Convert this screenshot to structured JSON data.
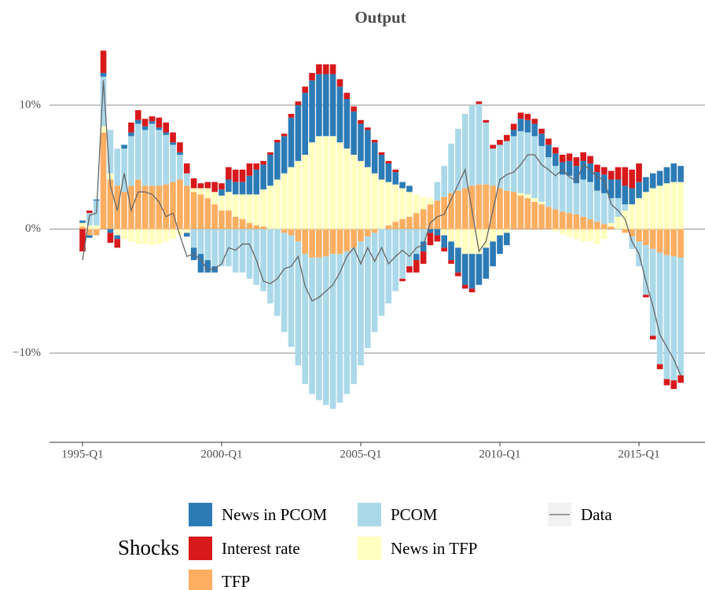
{
  "chart_data": {
    "type": "bar",
    "stacked": true,
    "title": "Output",
    "categories": [
      "1995-Q1",
      null,
      null,
      null,
      null,
      null,
      null,
      null,
      null,
      null,
      null,
      null,
      null,
      null,
      null,
      null,
      null,
      null,
      null,
      null,
      "2000-Q1",
      null,
      null,
      null,
      null,
      null,
      null,
      null,
      null,
      null,
      null,
      null,
      null,
      null,
      null,
      null,
      null,
      null,
      null,
      null,
      "2005-Q1",
      null,
      null,
      null,
      null,
      null,
      null,
      null,
      null,
      null,
      null,
      null,
      null,
      null,
      null,
      null,
      null,
      null,
      null,
      null,
      "2010-Q1",
      null,
      null,
      null,
      null,
      null,
      null,
      null,
      null,
      null,
      null,
      null,
      null,
      null,
      null,
      null,
      null,
      null,
      null,
      null,
      "2015-Q1",
      null,
      null,
      null,
      null,
      null,
      null
    ],
    "ylim": [
      -17.2,
      15
    ],
    "yticks": [
      {
        "value": -10,
        "label": "−10%"
      },
      {
        "value": 0,
        "label": "0%"
      },
      {
        "value": 10,
        "label": "10%"
      }
    ],
    "grid": true,
    "legend_title": "Shocks",
    "series": [
      {
        "name": "News in PCOM",
        "color": "#2c7bb6",
        "values": [
          0.2,
          -0.2,
          0.1,
          0.3,
          -0.3,
          -0.3,
          0.3,
          0.3,
          0.3,
          0.3,
          0.2,
          0.2,
          0.2,
          0.2,
          0.2,
          -0.3,
          -1,
          -1.5,
          -1,
          -0.5,
          0.5,
          1,
          1,
          1,
          1.5,
          2,
          2,
          2.5,
          3,
          3,
          4,
          4.5,
          5,
          5,
          5,
          5,
          5,
          4.5,
          4,
          3.5,
          3,
          3,
          2.5,
          2,
          1.5,
          1,
          0.5,
          0.5,
          -0.5,
          -0.8,
          -0.3,
          -0.5,
          -1,
          -1.5,
          -2,
          -2.5,
          -2.8,
          -2.5,
          -2.5,
          -2,
          -1.5,
          -1,
          0.5,
          1,
          1,
          1,
          1,
          1,
          1,
          1,
          1.2,
          1.4,
          1.5,
          1.5,
          1.5,
          1.5,
          1.5,
          1.5,
          1.5,
          1.3,
          1.3,
          1.2,
          1.2,
          1.2,
          1.3,
          1.5,
          1.3
        ]
      },
      {
        "name": "Interest rate",
        "color": "#d7191c",
        "values": [
          -1.8,
          0.2,
          0,
          1.8,
          -0.8,
          -0.7,
          0,
          0.8,
          0.8,
          0.6,
          0.4,
          0.8,
          0.8,
          0.8,
          0.8,
          0.8,
          0.8,
          0.4,
          0.5,
          0.8,
          0.5,
          1,
          1,
          1,
          1,
          0.5,
          0.3,
          0.2,
          0.2,
          0.2,
          0.3,
          0.3,
          0.5,
          0.6,
          0.8,
          0.8,
          0.8,
          0.6,
          0.5,
          0.4,
          0.3,
          0.2,
          0.2,
          0.2,
          0.2,
          0.2,
          -0.2,
          -0.5,
          -1,
          -1,
          -1,
          -0.5,
          -0.3,
          -0.3,
          -0.3,
          -0.3,
          -0.3,
          0.2,
          0.2,
          0.3,
          0.4,
          0.5,
          0.5,
          0.5,
          0.5,
          0.4,
          0.4,
          0.5,
          0.5,
          0.6,
          0.6,
          0.7,
          0.7,
          0.6,
          0.6,
          0.6,
          0.7,
          1,
          1.5,
          1.5,
          1.5,
          -0.2,
          -0.3,
          -0.4,
          -0.5,
          -0.7,
          -0.6
        ]
      },
      {
        "name": "TFP",
        "color": "#fdae61",
        "values": [
          0.2,
          -0.5,
          -0.5,
          7.8,
          4,
          3.5,
          3,
          3.5,
          4,
          3.5,
          3.5,
          3.5,
          3.6,
          3.8,
          4,
          3.5,
          3,
          2.8,
          2.5,
          2,
          1.5,
          1.5,
          1,
          0.8,
          0.5,
          0.3,
          0.2,
          0,
          0,
          -0.3,
          -0.5,
          -1,
          -2,
          -2.3,
          -2.3,
          -2.2,
          -2,
          -2,
          -1.8,
          -1.5,
          -1,
          -0.6,
          -0.3,
          0,
          0.3,
          0.6,
          0.8,
          1,
          1.3,
          1.6,
          2,
          2.3,
          2.6,
          2.9,
          3.1,
          3.3,
          3.5,
          3.6,
          3.6,
          3.5,
          3.3,
          3.1,
          3,
          2.7,
          2.5,
          2.2,
          2,
          1.8,
          1.6,
          1.4,
          1.3,
          1.2,
          1,
          0.8,
          0.6,
          0.4,
          0.2,
          0,
          -0.3,
          -0.6,
          -1,
          -1.3,
          -1.6,
          -1.9,
          -2.1,
          -2.2,
          -2.3
        ]
      },
      {
        "name": "PCOM",
        "color": "#abd9e9",
        "values": [
          0,
          1,
          2,
          4,
          3.5,
          3,
          3.5,
          4,
          4.5,
          4.5,
          5,
          4.5,
          4,
          3,
          2,
          1,
          -1.5,
          -2,
          -2.5,
          -3,
          -3,
          -3,
          -3.5,
          -3.5,
          -4,
          -4.5,
          -5,
          -6,
          -7,
          -8,
          -9,
          -10,
          -10.5,
          -11,
          -11.5,
          -12,
          -12.5,
          -12,
          -11.5,
          -11,
          -10,
          -9,
          -8,
          -7,
          -6,
          -5,
          -4,
          -3,
          -2,
          -1,
          0,
          1.5,
          2.5,
          4,
          5,
          6,
          6.5,
          6.5,
          5,
          3,
          3.5,
          4,
          4.5,
          5,
          5,
          5,
          4.5,
          4,
          3.5,
          3,
          3,
          2.5,
          3,
          3,
          2.5,
          2.5,
          2,
          1.5,
          0.5,
          -1,
          -2,
          -4,
          -7,
          -9,
          -10,
          -10,
          -9.5
        ]
      },
      {
        "name": "News in TFP",
        "color": "#ffffbf",
        "values": [
          0.3,
          0.3,
          0.3,
          0.5,
          0.5,
          -0.5,
          -0.8,
          -1,
          -1.2,
          -1.2,
          -1.3,
          -1.2,
          -1,
          -0.8,
          -0.5,
          -0.3,
          0.3,
          0.5,
          0.8,
          1,
          1.2,
          1.5,
          1.8,
          2,
          2.3,
          2.5,
          3,
          3.5,
          4,
          4.5,
          5,
          5.5,
          6,
          7,
          7.5,
          7.5,
          7.5,
          7,
          6.5,
          6,
          5.5,
          5,
          4.5,
          4,
          3.5,
          3,
          2.5,
          2,
          1.5,
          1,
          0.5,
          0,
          -0.5,
          -1,
          -1.5,
          -2,
          -2,
          -2,
          -1.5,
          -1,
          -0.5,
          -0.3,
          0,
          0.2,
          0.3,
          0.3,
          0.2,
          0,
          -0.2,
          -0.4,
          -0.6,
          -0.8,
          -1,
          -1,
          -1.2,
          -0.8,
          0.3,
          1,
          1.5,
          2,
          2.5,
          3,
          3.3,
          3.5,
          3.7,
          3.8,
          3.8
        ]
      }
    ],
    "line": {
      "name": "Data",
      "color": "#666666",
      "values": [
        -2.5,
        1.1,
        1.3,
        12,
        3.5,
        1.5,
        4.5,
        1.5,
        3,
        3,
        2.8,
        2.2,
        1,
        1.3,
        -0.5,
        -2.2,
        -2,
        -2.5,
        -3.3,
        -3.2,
        -2.8,
        -1.5,
        -1.7,
        -1.2,
        -1.2,
        -2.5,
        -4.2,
        -4.4,
        -4,
        -3.2,
        -3,
        -2.2,
        -4.6,
        -5.8,
        -5.5,
        -5,
        -4.5,
        -3.5,
        -2.2,
        -1.5,
        -2.8,
        -1.5,
        -2.6,
        -1.5,
        -2.8,
        -2.2,
        -1.7,
        -2.2,
        -1.5,
        -1.3,
        0.5,
        1,
        1.2,
        2.4,
        3.6,
        4.8,
        1.5,
        -1.8,
        -1,
        1.5,
        4,
        4.4,
        4.6,
        5.2,
        6,
        6,
        5.2,
        4.8,
        4.3,
        4.8,
        4.2,
        3.9,
        5.2,
        4.8,
        4.2,
        4,
        2,
        1.5,
        0.8,
        -1,
        -2,
        -4.2,
        -6.2,
        -8.5,
        -9.5,
        -10.5,
        -11.8
      ]
    }
  }
}
